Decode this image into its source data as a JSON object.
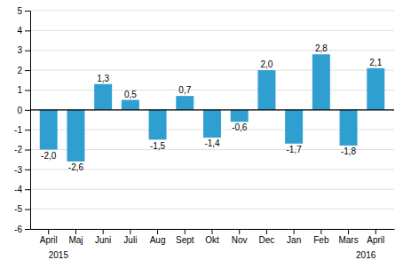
{
  "chart_data": {
    "type": "bar",
    "categories": [
      "April",
      "Maj",
      "Juni",
      "Juli",
      "Aug",
      "Sept",
      "Okt",
      "Nov",
      "Dec",
      "Jan",
      "Feb",
      "Mars",
      "April"
    ],
    "values": [
      -2.0,
      -2.6,
      1.3,
      0.5,
      -1.5,
      0.7,
      -1.4,
      -0.6,
      2.0,
      -1.7,
      2.8,
      -1.8,
      2.1
    ],
    "value_labels": [
      "-2,0",
      "-2,6",
      "1,3",
      "0,5",
      "-1,5",
      "0,7",
      "-1,4",
      "-0,6",
      "2,0",
      "-1,7",
      "2,8",
      "-1,8",
      "2,1"
    ],
    "data_labels": true,
    "color": "#2E9FD0",
    "ylim": [
      -6,
      5
    ],
    "yticks": [
      -6,
      -5,
      -4,
      -3,
      -2,
      -1,
      0,
      1,
      2,
      3,
      4,
      5
    ],
    "grid": true,
    "annotations": [
      "2015",
      "2016"
    ]
  }
}
